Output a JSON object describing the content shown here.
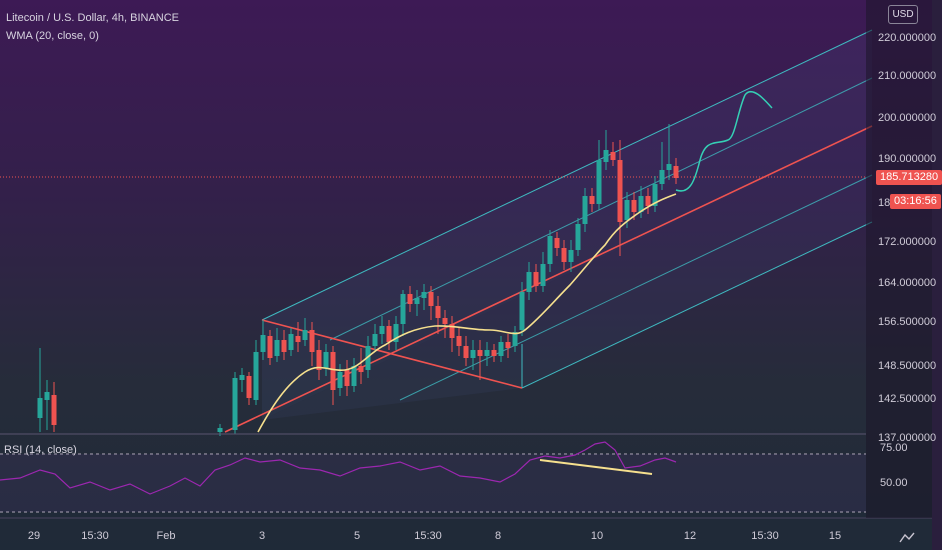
{
  "legend": {
    "symbol": "Litecoin / U.S. Dollar, 4h, BINANCE",
    "indicator": "WMA (20, close, 0)"
  },
  "price_scale": {
    "currency_button": "USD",
    "labels": [
      "220.000000",
      "210.000000",
      "200.000000",
      "190.000000",
      "172.000000",
      "164.000000",
      "156.500000",
      "148.500000",
      "142.500000",
      "137.000000"
    ],
    "partial_label": "18",
    "last_price": "185.713280",
    "countdown": "03:16:56"
  },
  "rsi": {
    "label": "RSI (14, close)",
    "levels": [
      "75.00",
      "50.00"
    ]
  },
  "time_axis": {
    "labels": [
      "29",
      "15:30",
      "Feb",
      "3",
      "5",
      "15:30",
      "8",
      "10",
      "12",
      "15:30",
      "15"
    ]
  },
  "colors": {
    "bullish": "#26a69a",
    "bearish": "#ef5350",
    "wma": "#f6e08e",
    "channel": "#3fb9c0",
    "median": "#ef5350",
    "rsi": "#9c27b0",
    "projection": "#35d0b5",
    "trendline": "#f6e08e"
  }
}
